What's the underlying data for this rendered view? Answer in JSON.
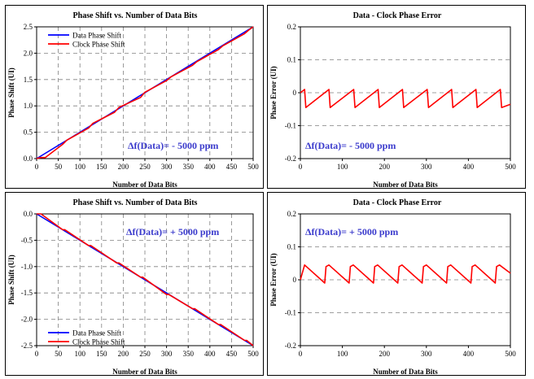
{
  "chart_data": [
    {
      "type": "line",
      "title": "Phase Shift vs. Number of Data Bits",
      "xlabel": "Number of Data Bits",
      "ylabel": "Phase Shift (UI)",
      "xlim": [
        0,
        500
      ],
      "ylim": [
        0,
        2.5
      ],
      "xticks": [
        0,
        50,
        100,
        150,
        200,
        250,
        300,
        350,
        400,
        450,
        500
      ],
      "yticks": [
        0.0,
        0.5,
        1.0,
        1.5,
        2.0,
        2.5
      ],
      "ytick_labels": [
        "0.0",
        "0.5",
        "1.0",
        "1.5",
        "2.0",
        "2.5"
      ],
      "grid": "dashed",
      "legend_position": "top-left",
      "annotation": "Δf(Data)= - 5000 ppm",
      "series": [
        {
          "name": "Data Phase Shift",
          "color": "#0000ff",
          "x": [
            0,
            500
          ],
          "y": [
            0,
            2.5
          ]
        },
        {
          "name": "Clock Phase Shift",
          "color": "#ff0000",
          "x": [
            0,
            10,
            20,
            60,
            70,
            120,
            130,
            180,
            190,
            240,
            250,
            300,
            310,
            360,
            370,
            420,
            430,
            480,
            490,
            500
          ],
          "y": [
            0,
            0.02,
            0.02,
            0.27,
            0.35,
            0.58,
            0.67,
            0.88,
            0.97,
            1.16,
            1.26,
            1.48,
            1.55,
            1.77,
            1.84,
            2.07,
            2.14,
            2.37,
            2.44,
            2.5
          ]
        }
      ]
    },
    {
      "type": "line",
      "title": "Data - Clock Phase Error",
      "xlabel": "Number of Data Bits",
      "ylabel": "Phase Error (UI)",
      "xlim": [
        0,
        500
      ],
      "ylim": [
        -0.2,
        0.2
      ],
      "xticks": [
        0,
        100,
        200,
        300,
        400,
        500
      ],
      "yticks": [
        -0.2,
        -0.1,
        0,
        0.1,
        0.2
      ],
      "ytick_labels": [
        "-0.2",
        "-0.1",
        "0",
        "0.1",
        "0.2"
      ],
      "grid": "dashed-horizontal",
      "annotation": "Δf(Data)= - 5000 ppm",
      "series": [
        {
          "color": "#ff0000",
          "x": [
            0,
            10,
            13,
            68,
            71,
            127,
            130,
            185,
            188,
            243,
            246,
            302,
            305,
            360,
            363,
            418,
            421,
            476,
            479,
            500
          ],
          "y": [
            0,
            0.01,
            -0.045,
            0.01,
            -0.045,
            0.01,
            -0.045,
            0.01,
            -0.045,
            0.01,
            -0.045,
            0.01,
            -0.045,
            0.01,
            -0.045,
            0.01,
            -0.045,
            0.01,
            -0.045,
            -0.035
          ]
        }
      ]
    },
    {
      "type": "line",
      "title": "Phase Shift vs. Number of Data Bits",
      "xlabel": "Number of Data Bits",
      "ylabel": "Phase Shift (UI)",
      "xlim": [
        0,
        500
      ],
      "ylim": [
        -2.5,
        0
      ],
      "xticks": [
        0,
        50,
        100,
        150,
        200,
        250,
        300,
        350,
        400,
        450,
        500
      ],
      "yticks": [
        0.0,
        -0.5,
        -1.0,
        -1.5,
        -2.0,
        -2.5
      ],
      "ytick_labels": [
        "0.0",
        "-0.5",
        "-1.0",
        "-1.5",
        "-2.0",
        "-2.5"
      ],
      "grid": "dashed",
      "legend_position": "bottom-left",
      "annotation": "Δf(Data)= + 5000 ppm",
      "series": [
        {
          "name": "Data Phase Shift",
          "color": "#0000ff",
          "x": [
            0,
            500
          ],
          "y": [
            0,
            -2.5
          ]
        },
        {
          "name": "Clock Phase Shift",
          "color": "#ff0000",
          "x": [
            0,
            10,
            60,
            65,
            120,
            125,
            185,
            190,
            240,
            245,
            300,
            305,
            360,
            365,
            420,
            425,
            480,
            485,
            500
          ],
          "y": [
            0,
            0.0,
            -0.3,
            -0.3,
            -0.6,
            -0.6,
            -0.93,
            -0.93,
            -1.2,
            -1.2,
            -1.53,
            -1.53,
            -1.8,
            -1.8,
            -2.1,
            -2.1,
            -2.4,
            -2.4,
            -2.5
          ]
        }
      ]
    },
    {
      "type": "line",
      "title": "Data - Clock Phase Error",
      "xlabel": "Number of Data Bits",
      "ylabel": "Phase Error (UI)",
      "xlim": [
        0,
        500
      ],
      "ylim": [
        -0.2,
        0.2
      ],
      "xticks": [
        0,
        100,
        200,
        300,
        400,
        500
      ],
      "yticks": [
        -0.2,
        -0.1,
        0,
        0.1,
        0.2
      ],
      "ytick_labels": [
        "-0.2",
        "-0.1",
        "0",
        "0.1",
        "0.2"
      ],
      "grid": "dashed-horizontal",
      "annotation": "Δf(Data)= + 5000 ppm",
      "series": [
        {
          "color": "#ff0000",
          "x": [
            0,
            10,
            58,
            61,
            68,
            116,
            119,
            126,
            174,
            177,
            184,
            232,
            235,
            242,
            290,
            293,
            300,
            348,
            351,
            358,
            406,
            409,
            416,
            464,
            467,
            474,
            500
          ],
          "y": [
            0,
            0.045,
            -0.01,
            0.04,
            0.045,
            -0.01,
            0.04,
            0.045,
            -0.01,
            0.04,
            0.045,
            -0.01,
            0.04,
            0.045,
            -0.01,
            0.04,
            0.045,
            -0.01,
            0.04,
            0.045,
            -0.01,
            0.04,
            0.045,
            -0.01,
            0.04,
            0.045,
            0.02
          ]
        }
      ]
    }
  ]
}
